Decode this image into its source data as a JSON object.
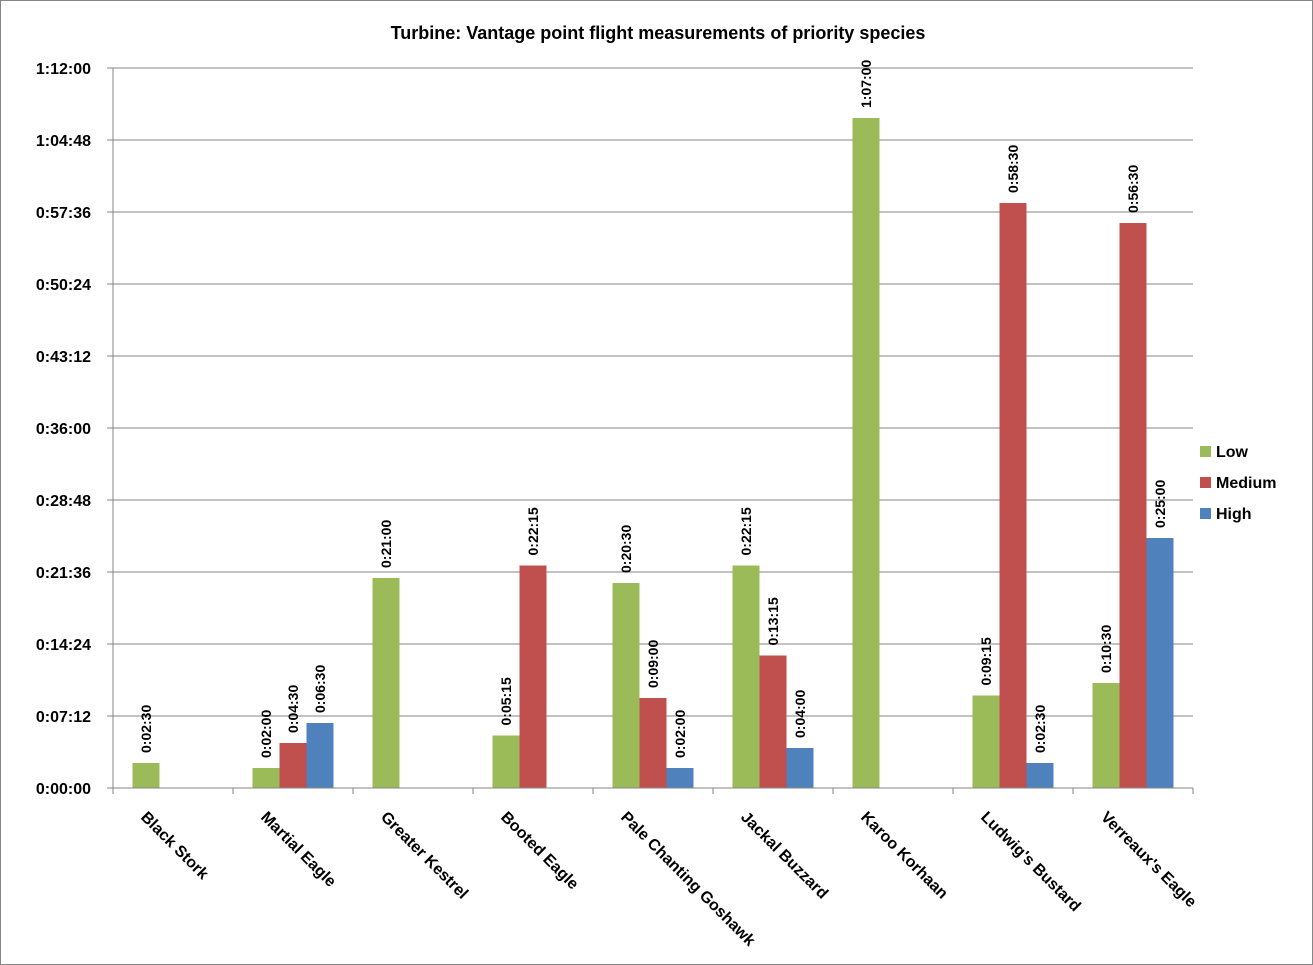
{
  "chart_data": {
    "type": "bar",
    "title": "Turbine: Vantage point flight measurements of priority species",
    "xlabel": "",
    "ylabel": "",
    "ylim_seconds": [
      0,
      4320
    ],
    "ytick_labels": [
      "0:00:00",
      "0:07:12",
      "0:14:24",
      "0:21:36",
      "0:28:48",
      "0:36:00",
      "0:43:12",
      "0:50:24",
      "0:57:36",
      "1:04:48",
      "1:12:00"
    ],
    "categories": [
      "Black Stork",
      "Martial Eagle",
      "Greater Kestrel",
      "Booted Eagle",
      "Pale Chanting Goshawk",
      "Jackal Buzzard",
      "Karoo Korhaan",
      "Ludwig's Bustard",
      "Verreaux's Eagle"
    ],
    "series": [
      {
        "name": "Low",
        "color": "#9BBB59",
        "values": [
          "0:02:30",
          "0:02:00",
          "0:21:00",
          "0:05:15",
          "0:20:30",
          "0:22:15",
          "1:07:00",
          "0:09:15",
          "0:10:30"
        ]
      },
      {
        "name": "Medium",
        "color": "#C0504D",
        "values": [
          null,
          "0:04:30",
          null,
          "0:22:15",
          "0:09:00",
          "0:13:15",
          null,
          "0:58:30",
          "0:56:30"
        ]
      },
      {
        "name": "High",
        "color": "#4F81BD",
        "values": [
          null,
          "0:06:30",
          null,
          null,
          "0:02:00",
          "0:04:00",
          null,
          "0:02:30",
          "0:25:00"
        ]
      }
    ],
    "legend_position": "right",
    "grid": true
  }
}
